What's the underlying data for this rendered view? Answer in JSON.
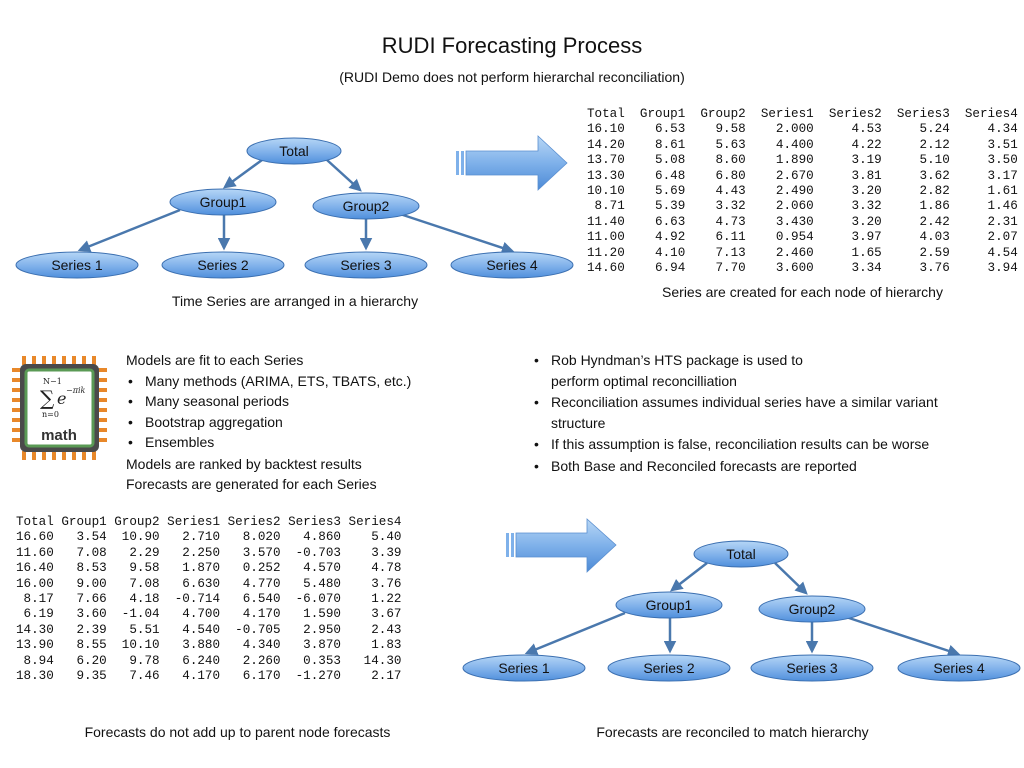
{
  "title": "RUDI Forecasting Process",
  "subtitle": "(RUDI Demo does not perform hierarchal reconciliation)",
  "hierarchy": {
    "root": "Total",
    "groups": [
      "Group1",
      "Group2"
    ],
    "series": [
      "Series 1",
      "Series 2",
      "Series 3",
      "Series 4"
    ]
  },
  "captions": {
    "top_left": "Time Series are arranged in a hierarchy",
    "top_right": "Series are created for each node of hierarchy",
    "bottom_left": "Forecasts do not add up to parent node forecasts",
    "bottom_right": "Forecasts are reconciled to match hierarchy"
  },
  "series_table": {
    "headers": [
      "Total",
      "Group1",
      "Group2",
      "Series1",
      "Series2",
      "Series3",
      "Series4"
    ],
    "rows": [
      [
        "16.10",
        "6.53",
        "9.58",
        "2.000",
        "4.53",
        "5.24",
        "4.34"
      ],
      [
        "14.20",
        "8.61",
        "5.63",
        "4.400",
        "4.22",
        "2.12",
        "3.51"
      ],
      [
        "13.70",
        "5.08",
        "8.60",
        "1.890",
        "3.19",
        "5.10",
        "3.50"
      ],
      [
        "13.30",
        "6.48",
        "6.80",
        "2.670",
        "3.81",
        "3.62",
        "3.17"
      ],
      [
        "10.10",
        "5.69",
        "4.43",
        "2.490",
        "3.20",
        "2.82",
        "1.61"
      ],
      [
        "8.71",
        "5.39",
        "3.32",
        "2.060",
        "3.32",
        "1.86",
        "1.46"
      ],
      [
        "11.40",
        "6.63",
        "4.73",
        "3.430",
        "3.20",
        "2.42",
        "2.31"
      ],
      [
        "11.00",
        "4.92",
        "6.11",
        "0.954",
        "3.97",
        "4.03",
        "2.07"
      ],
      [
        "11.20",
        "4.10",
        "7.13",
        "2.460",
        "1.65",
        "2.59",
        "4.54"
      ],
      [
        "14.60",
        "6.94",
        "7.70",
        "3.600",
        "3.34",
        "3.76",
        "3.94"
      ]
    ]
  },
  "forecast_table": {
    "headers": [
      "Total",
      "Group1",
      "Group2",
      "Series1",
      "Series2",
      "Series3",
      "Series4"
    ],
    "rows": [
      [
        "16.60",
        "3.54",
        "10.90",
        "2.710",
        "8.020",
        "4.860",
        "5.40"
      ],
      [
        "11.60",
        "7.08",
        "2.29",
        "2.250",
        "3.570",
        "-0.703",
        "3.39"
      ],
      [
        "16.40",
        "8.53",
        "9.58",
        "1.870",
        "0.252",
        "4.570",
        "4.78"
      ],
      [
        "16.00",
        "9.00",
        "7.08",
        "6.630",
        "4.770",
        "5.480",
        "3.76"
      ],
      [
        "8.17",
        "7.66",
        "4.18",
        "-0.714",
        "6.540",
        "-6.070",
        "1.22"
      ],
      [
        "6.19",
        "3.60",
        "-1.04",
        "4.700",
        "4.170",
        "1.590",
        "3.67"
      ],
      [
        "14.30",
        "2.39",
        "5.51",
        "4.540",
        "-0.705",
        "2.950",
        "2.43"
      ],
      [
        "13.90",
        "8.55",
        "10.10",
        "3.880",
        "4.340",
        "3.870",
        "1.83"
      ],
      [
        "8.94",
        "6.20",
        "9.78",
        "6.240",
        "2.260",
        "0.353",
        "14.30"
      ],
      [
        "18.30",
        "9.35",
        "7.46",
        "4.170",
        "6.170",
        "-1.270",
        "2.17"
      ]
    ]
  },
  "models_block": {
    "intro": "Models are fit to each Series",
    "bullets": [
      "Many methods (ARIMA, ETS, TBATS, etc.)",
      "Many seasonal periods",
      "Bootstrap aggregation",
      "Ensembles"
    ],
    "outro": [
      "Models are ranked by backtest results",
      "Forecasts are generated for each Series"
    ]
  },
  "reconciliation_block": {
    "bullets": [
      "Rob Hyndman’s HTS package is used to perform optimal reconcilliation",
      "Reconciliation assumes individual series have a similar variant structure",
      "If this assumption is false, reconciliation results can be worse",
      "Both Base and Reconciled forecasts are reported"
    ]
  },
  "math_icon": {
    "icon": "math-chip-icon",
    "formula_upper": "N−1",
    "formula_sum": "∑",
    "formula_lower": "n=0",
    "formula_body": "e",
    "formula_exponent": "−πik",
    "label": "math"
  },
  "colors": {
    "node_fill_light": "#9cc7f2",
    "node_fill_dark": "#4f8fdc",
    "node_stroke": "#3b6fb0",
    "connector": "#4a78ad",
    "arrow_light": "#a9cdf3",
    "arrow_dark": "#4c8ad6",
    "chip_orange": "#e8882a",
    "chip_green": "#5a9a55"
  }
}
